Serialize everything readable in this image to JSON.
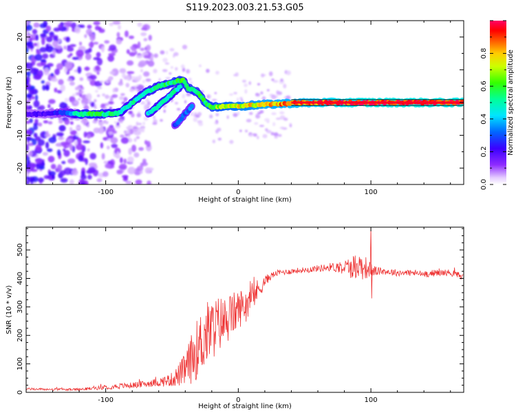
{
  "title": "S119.2023.003.21.53.G05",
  "chart_data": [
    {
      "type": "heatmap",
      "xlabel": "Height of straight line (km)",
      "ylabel": "Frequency (Hz)",
      "xlim": [
        -160,
        170
      ],
      "ylim": [
        -25,
        25
      ],
      "x_ticks": [
        -100,
        0,
        100
      ],
      "y_ticks": [
        -20,
        -10,
        0,
        10,
        20
      ],
      "x_tick_labels": [
        "-100",
        "0",
        "100"
      ],
      "y_tick_labels": [
        "-20",
        "-10",
        "0",
        "10",
        "20"
      ],
      "grid": false,
      "colorbar": {
        "label": "Normalized spectral amplitude",
        "range": [
          0,
          1
        ],
        "ticks": [
          0.0,
          0.2,
          0.4,
          0.6,
          0.8
        ],
        "tick_labels": [
          "0.0",
          "0.2",
          "0.4",
          "0.6",
          "0.8"
        ]
      },
      "ridge": {
        "x": [
          -160,
          -150,
          -140,
          -130,
          -120,
          -110,
          -100,
          -90,
          -80,
          -70,
          -60,
          -50,
          -42,
          -38,
          -30,
          -25,
          -20,
          -10,
          0,
          10,
          20,
          40,
          60,
          80,
          100,
          130,
          170
        ],
        "y": [
          -3.5,
          -3.5,
          -3.2,
          -3,
          -3.5,
          -3.5,
          -3.5,
          -3.2,
          0,
          3,
          5,
          6,
          7,
          4.5,
          3,
          0,
          -1.5,
          -1,
          -1.2,
          -0.8,
          -0.6,
          -0.2,
          0,
          0,
          0,
          0,
          0
        ],
        "amplitude": [
          0.2,
          0.2,
          0.22,
          0.3,
          0.55,
          0.6,
          0.55,
          0.5,
          0.5,
          0.52,
          0.55,
          0.58,
          0.6,
          0.58,
          0.55,
          0.6,
          0.62,
          0.7,
          0.75,
          0.78,
          0.82,
          0.85,
          0.9,
          0.95,
          0.98,
          0.98,
          0.98
        ]
      },
      "branch": {
        "x": [
          -68,
          -60,
          -52,
          -45,
          -40
        ],
        "y": [
          -3.5,
          -1,
          2,
          4.5,
          6.5
        ],
        "amplitude": [
          0.45,
          0.5,
          0.5,
          0.5,
          0.5
        ]
      },
      "branch2": {
        "x": [
          -48,
          -40,
          -34
        ],
        "y": [
          -7,
          -3.5,
          -0.5
        ],
        "amplitude": [
          0.3,
          0.32,
          0.35
        ]
      }
    },
    {
      "type": "line",
      "xlabel": "Height of straight line (km)",
      "ylabel": "SNR (10 * v/v)",
      "xlim": [
        -160,
        170
      ],
      "ylim": [
        0,
        580
      ],
      "x_ticks": [
        -100,
        0,
        100
      ],
      "y_ticks": [
        0,
        100,
        200,
        300,
        400,
        500
      ],
      "x_tick_labels": [
        "-100",
        "0",
        "100"
      ],
      "y_tick_labels": [
        "0",
        "100",
        "200",
        "300",
        "400",
        "500"
      ],
      "grid": false,
      "series": [
        {
          "color": "#ee3333",
          "x": [
            -160,
            -140,
            -120,
            -100,
            -90,
            -80,
            -70,
            -60,
            -50,
            -45,
            -40,
            -35,
            -30,
            -25,
            -20,
            -15,
            -10,
            -5,
            0,
            5,
            10,
            15,
            20,
            25,
            30,
            40,
            50,
            60,
            70,
            80,
            85,
            90,
            95,
            100,
            105,
            110,
            120,
            130,
            140,
            150,
            160,
            170
          ],
          "y": [
            12,
            10,
            10,
            18,
            22,
            25,
            30,
            35,
            45,
            60,
            80,
            120,
            160,
            200,
            220,
            240,
            250,
            270,
            290,
            310,
            330,
            360,
            390,
            410,
            420,
            425,
            430,
            435,
            440,
            440,
            440,
            445,
            440,
            430,
            425,
            425,
            420,
            420,
            415,
            420,
            420,
            405
          ],
          "noise": [
            4,
            4,
            4,
            8,
            10,
            10,
            12,
            15,
            25,
            40,
            60,
            90,
            110,
            120,
            110,
            100,
            90,
            80,
            70,
            60,
            50,
            40,
            20,
            12,
            10,
            10,
            10,
            12,
            15,
            25,
            40,
            50,
            45,
            25,
            15,
            12,
            12,
            12,
            12,
            12,
            12,
            12
          ]
        }
      ]
    }
  ]
}
